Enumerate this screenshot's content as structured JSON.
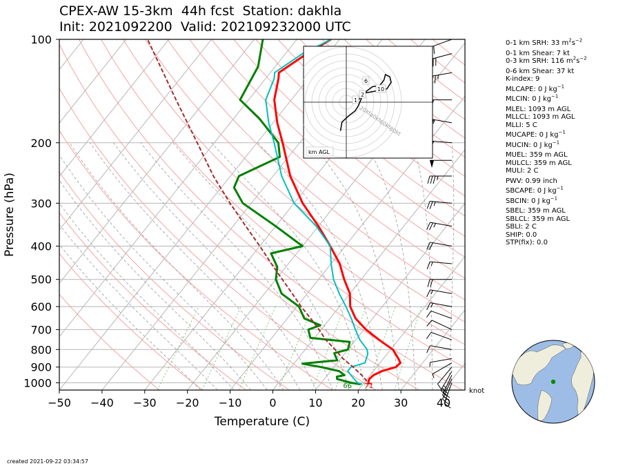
{
  "title_line1": "CPEX-AW 15-3km  44h fcst  Station: dakhla",
  "title_line2": "Init: 2021092200  Valid: 202109232000 UTC",
  "created": "created 2021-09-22 03:34:57",
  "stats": [
    {
      "text": "0-1 km SRH: 33 m",
      "sup": "2",
      "tail": "s",
      "sup2": "−2"
    },
    {
      "text": "0-1 km Shear: 7 kt"
    },
    {
      "text": "0-3 km SRH: 116 m",
      "sup": "2",
      "tail": "s",
      "sup2": "−2"
    },
    {
      "text": "0-6 km Shear: 37 kt"
    },
    {
      "text": "K-index: 9"
    },
    {
      "text": "MLCAPE: 0 J kg",
      "sup": "−1"
    },
    {
      "text": "MLCIN: 0 J kg",
      "sup": "−1"
    },
    {
      "text": "MLEL: 1093 m AGL"
    },
    {
      "text": "MLLCL: 1093 m AGL"
    },
    {
      "text": "MLLI: 5 C"
    },
    {
      "text": "MUCAPE: 0 J kg",
      "sup": "−1"
    },
    {
      "text": "MUCIN: 0 J kg",
      "sup": "−1"
    },
    {
      "text": "MUEL: 359 m AGL"
    },
    {
      "text": "MULCL: 359 m AGL"
    },
    {
      "text": "MULI: 2 C"
    },
    {
      "text": "PWV: 0.99 inch"
    },
    {
      "text": "SBCAPE: 0 J kg",
      "sup": "−1"
    },
    {
      "text": "SBCIN: 0 J kg",
      "sup": "−1"
    },
    {
      "text": "SBEL: 359 m AGL"
    },
    {
      "text": "SBLCL: 359 m AGL"
    },
    {
      "text": "SBLI: 2 C"
    },
    {
      "text": "SHIP: 0.0"
    },
    {
      "text": "STP(fix): 0.0"
    }
  ],
  "chart_data": {
    "type": "line",
    "subtype": "skew-T log-p sounding",
    "xlabel": "Temperature (C)",
    "ylabel": "Pressure (hPa)",
    "xlim": [
      -50,
      45
    ],
    "ylim": [
      1050,
      100
    ],
    "y_scale": "log",
    "x_ticks": [
      -50,
      -40,
      -30,
      -20,
      -10,
      0,
      10,
      20,
      30,
      40
    ],
    "y_ticks": [
      100,
      200,
      300,
      400,
      500,
      600,
      700,
      800,
      900,
      1000
    ],
    "wind_unit_label": "knot",
    "surface_labels": {
      "dewpoint": "66",
      "temperature": "71"
    },
    "colors": {
      "temperature": "#ff0000",
      "dewpoint": "#008000",
      "wetbulb": "#00bfbf",
      "parcel": "#a52a2a"
    },
    "series": [
      {
        "id": "temperature",
        "points": [
          [
            1010,
            21.5
          ],
          [
            1000,
            21
          ],
          [
            975,
            20.5
          ],
          [
            950,
            20.8
          ],
          [
            925,
            22
          ],
          [
            900,
            24.5
          ],
          [
            875,
            24.8
          ],
          [
            850,
            23.5
          ],
          [
            800,
            20.5
          ],
          [
            750,
            15.5
          ],
          [
            700,
            10.5
          ],
          [
            650,
            6
          ],
          [
            600,
            2.5
          ],
          [
            550,
            0
          ],
          [
            500,
            -4
          ],
          [
            450,
            -8
          ],
          [
            400,
            -13.5
          ],
          [
            350,
            -20
          ],
          [
            300,
            -28
          ],
          [
            250,
            -36
          ],
          [
            200,
            -44
          ],
          [
            175,
            -49
          ],
          [
            150,
            -54
          ],
          [
            130,
            -57
          ],
          [
            125,
            -58
          ],
          [
            110,
            -55
          ],
          [
            100,
            -52
          ]
        ]
      },
      {
        "id": "dewpoint",
        "points": [
          [
            1010,
            19.5
          ],
          [
            1000,
            17
          ],
          [
            975,
            13
          ],
          [
            960,
            12.5
          ],
          [
            950,
            14
          ],
          [
            925,
            12
          ],
          [
            900,
            7
          ],
          [
            880,
            2
          ],
          [
            860,
            9.5
          ],
          [
            840,
            8.5
          ],
          [
            820,
            7.5
          ],
          [
            800,
            10
          ],
          [
            760,
            9
          ],
          [
            740,
            -1
          ],
          [
            700,
            -3
          ],
          [
            680,
            -1
          ],
          [
            650,
            -6
          ],
          [
            600,
            -9.5
          ],
          [
            550,
            -16
          ],
          [
            500,
            -20
          ],
          [
            460,
            -22
          ],
          [
            420,
            -26
          ],
          [
            400,
            -20
          ],
          [
            350,
            -30
          ],
          [
            300,
            -42
          ],
          [
            270,
            -47
          ],
          [
            250,
            -48
          ],
          [
            220,
            -42
          ],
          [
            200,
            -45
          ],
          [
            170,
            -54
          ],
          [
            150,
            -62
          ],
          [
            120,
            -64
          ],
          [
            100,
            -68
          ]
        ]
      },
      {
        "id": "wetbulb",
        "points": [
          [
            1010,
            19.8
          ],
          [
            1000,
            18.5
          ],
          [
            975,
            17
          ],
          [
            950,
            15.5
          ],
          [
            925,
            14
          ],
          [
            900,
            14
          ],
          [
            875,
            16.5
          ],
          [
            850,
            16
          ],
          [
            825,
            15.5
          ],
          [
            800,
            14.5
          ],
          [
            750,
            11
          ],
          [
            700,
            8
          ],
          [
            650,
            5
          ],
          [
            600,
            1.5
          ],
          [
            550,
            -2.5
          ],
          [
            500,
            -6.5
          ],
          [
            450,
            -10
          ],
          [
            400,
            -13.5
          ],
          [
            350,
            -20.5
          ],
          [
            300,
            -30
          ],
          [
            250,
            -38
          ],
          [
            200,
            -46
          ],
          [
            175,
            -51
          ],
          [
            150,
            -56
          ],
          [
            130,
            -58
          ],
          [
            125,
            -59
          ],
          [
            110,
            -56
          ],
          [
            100,
            -52
          ]
        ]
      },
      {
        "id": "parcel",
        "points": [
          [
            1010,
            22.2
          ],
          [
            1000,
            21
          ],
          [
            950,
            18
          ],
          [
            900,
            14.5
          ],
          [
            850,
            10.5
          ],
          [
            800,
            7
          ],
          [
            750,
            3
          ],
          [
            700,
            -0.5
          ],
          [
            650,
            -4.5
          ],
          [
            600,
            -9
          ],
          [
            550,
            -13.5
          ],
          [
            500,
            -18.5
          ],
          [
            450,
            -24
          ],
          [
            400,
            -30
          ],
          [
            350,
            -37
          ],
          [
            300,
            -45
          ],
          [
            250,
            -54
          ],
          [
            200,
            -64
          ],
          [
            150,
            -77
          ],
          [
            100,
            -95
          ]
        ]
      }
    ],
    "wind_barbs": [
      {
        "p": 1000,
        "speed": 10,
        "dir": 20
      },
      {
        "p": 975,
        "speed": 15,
        "dir": 25
      },
      {
        "p": 950,
        "speed": 20,
        "dir": 25
      },
      {
        "p": 925,
        "speed": 25,
        "dir": 30
      },
      {
        "p": 900,
        "speed": 10,
        "dir": 40
      },
      {
        "p": 875,
        "speed": 5,
        "dir": 60
      },
      {
        "p": 850,
        "speed": 5,
        "dir": 80
      },
      {
        "p": 800,
        "speed": 10,
        "dir": 100
      },
      {
        "p": 750,
        "speed": 10,
        "dir": 110
      },
      {
        "p": 700,
        "speed": 10,
        "dir": 115
      },
      {
        "p": 650,
        "speed": 10,
        "dir": 110
      },
      {
        "p": 600,
        "speed": 15,
        "dir": 100
      },
      {
        "p": 550,
        "speed": 15,
        "dir": 100
      },
      {
        "p": 500,
        "speed": 20,
        "dir": 90
      },
      {
        "p": 450,
        "speed": 15,
        "dir": 95
      },
      {
        "p": 400,
        "speed": 20,
        "dir": 100
      },
      {
        "p": 350,
        "speed": 25,
        "dir": 100
      },
      {
        "p": 300,
        "speed": 25,
        "dir": 95
      },
      {
        "p": 250,
        "speed": 35,
        "dir": 90
      },
      {
        "p": 225,
        "speed": 50,
        "dir": 90
      },
      {
        "p": 200,
        "speed": 50,
        "dir": 95
      },
      {
        "p": 175,
        "speed": 55,
        "dir": 100
      },
      {
        "p": 150,
        "speed": 50,
        "dir": 90
      },
      {
        "p": 125,
        "speed": 35,
        "dir": 80
      },
      {
        "p": 110,
        "speed": 30,
        "dir": 75
      },
      {
        "p": 100,
        "speed": 20,
        "dir": 70
      }
    ],
    "hodograph": {
      "range_labels": [
        "20kt",
        "40kt",
        "60kt",
        "80kt"
      ],
      "legend": "km AGL",
      "height_labels": [
        "1",
        "2",
        "6",
        "10"
      ],
      "points_kt": [
        [
          -4,
          -26
        ],
        [
          -3,
          -18
        ],
        [
          2,
          -12
        ],
        [
          6,
          -8
        ],
        [
          8,
          -4
        ],
        [
          12,
          8
        ],
        [
          20,
          10
        ],
        [
          28,
          12
        ],
        [
          31,
          18
        ],
        [
          30,
          23
        ],
        [
          27,
          25
        ],
        [
          26,
          20
        ],
        [
          23,
          15
        ],
        [
          18,
          14
        ],
        [
          14,
          10
        ],
        [
          10,
          4
        ],
        [
          8,
          2
        ],
        [
          6,
          0
        ]
      ]
    },
    "globe": {
      "station_marker": "dakhla",
      "station_lat": 23.7,
      "station_lon": -15.9
    }
  }
}
